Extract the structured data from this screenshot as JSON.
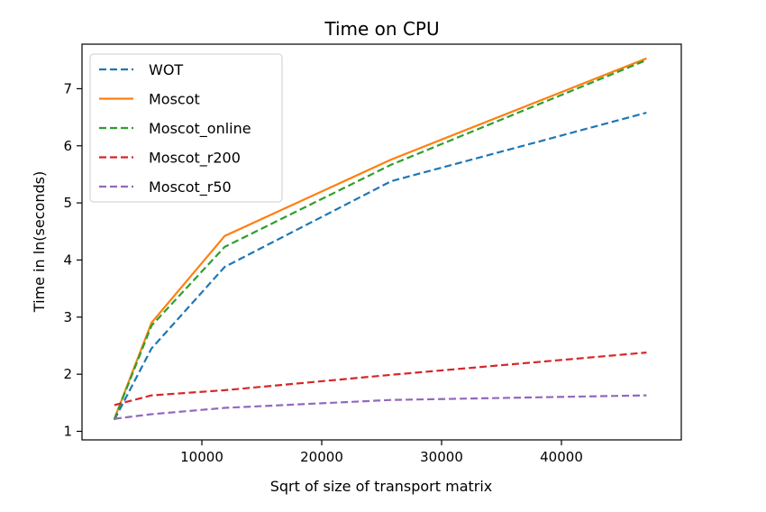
{
  "chart_data": {
    "type": "line",
    "title": "Time on CPU",
    "xlabel": "Sqrt of size of transport matrix",
    "ylabel": "Time in ln(seconds)",
    "xlim": [
      0,
      50000
    ],
    "ylim": [
      0.85,
      7.78
    ],
    "xticks": [
      10000,
      20000,
      30000,
      40000
    ],
    "yticks": [
      1,
      2,
      3,
      4,
      5,
      6,
      7
    ],
    "grid": false,
    "legend": "top-left",
    "series": [
      {
        "name": "WOT",
        "color": "#1f77b4",
        "dash": "dashed",
        "x": [
          2700,
          5800,
          11900,
          25800,
          47100
        ],
        "y": [
          1.2,
          2.45,
          3.88,
          5.38,
          6.58
        ]
      },
      {
        "name": "Moscot",
        "color": "#ff7f0e",
        "dash": "solid",
        "x": [
          2700,
          5800,
          11900,
          25800,
          47100
        ],
        "y": [
          1.22,
          2.9,
          4.42,
          5.76,
          7.53
        ]
      },
      {
        "name": "Moscot_online",
        "color": "#2ca02c",
        "dash": "dashed",
        "x": [
          2700,
          5800,
          11900,
          25800,
          47100
        ],
        "y": [
          1.21,
          2.85,
          4.23,
          5.67,
          7.5
        ]
      },
      {
        "name": "Moscot_r200",
        "color": "#d62728",
        "dash": "dashed",
        "x": [
          2700,
          5800,
          11900,
          25800,
          47100
        ],
        "y": [
          1.46,
          1.63,
          1.72,
          1.99,
          2.38
        ]
      },
      {
        "name": "Moscot_r50",
        "color": "#9467bd",
        "dash": "dashed",
        "x": [
          2700,
          5800,
          11900,
          25800,
          47100
        ],
        "y": [
          1.22,
          1.3,
          1.41,
          1.55,
          1.63
        ]
      }
    ]
  }
}
